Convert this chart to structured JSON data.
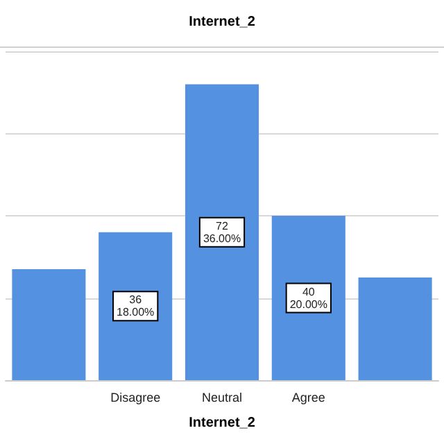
{
  "chart_data": {
    "type": "bar",
    "title": "Internet_2",
    "xlabel": "Internet_2",
    "categories": [
      null,
      "Disagree",
      "Neutral",
      "Agree",
      null
    ],
    "values": [
      27,
      36,
      72,
      40,
      25
    ],
    "value_labels": [
      null,
      "36\n18.00%",
      "72\n36.00%",
      "40\n20.00%",
      null
    ],
    "color": "#5591e1",
    "ylim": [
      0,
      80
    ],
    "yticks": [
      {
        "value": 0,
        "label": null
      },
      {
        "value": 20,
        "label": null
      },
      {
        "value": 40,
        "label": null
      },
      {
        "value": 60,
        "label": null
      },
      {
        "value": 80,
        "label": null
      }
    ],
    "tick_labels": "x",
    "grid": "y"
  }
}
